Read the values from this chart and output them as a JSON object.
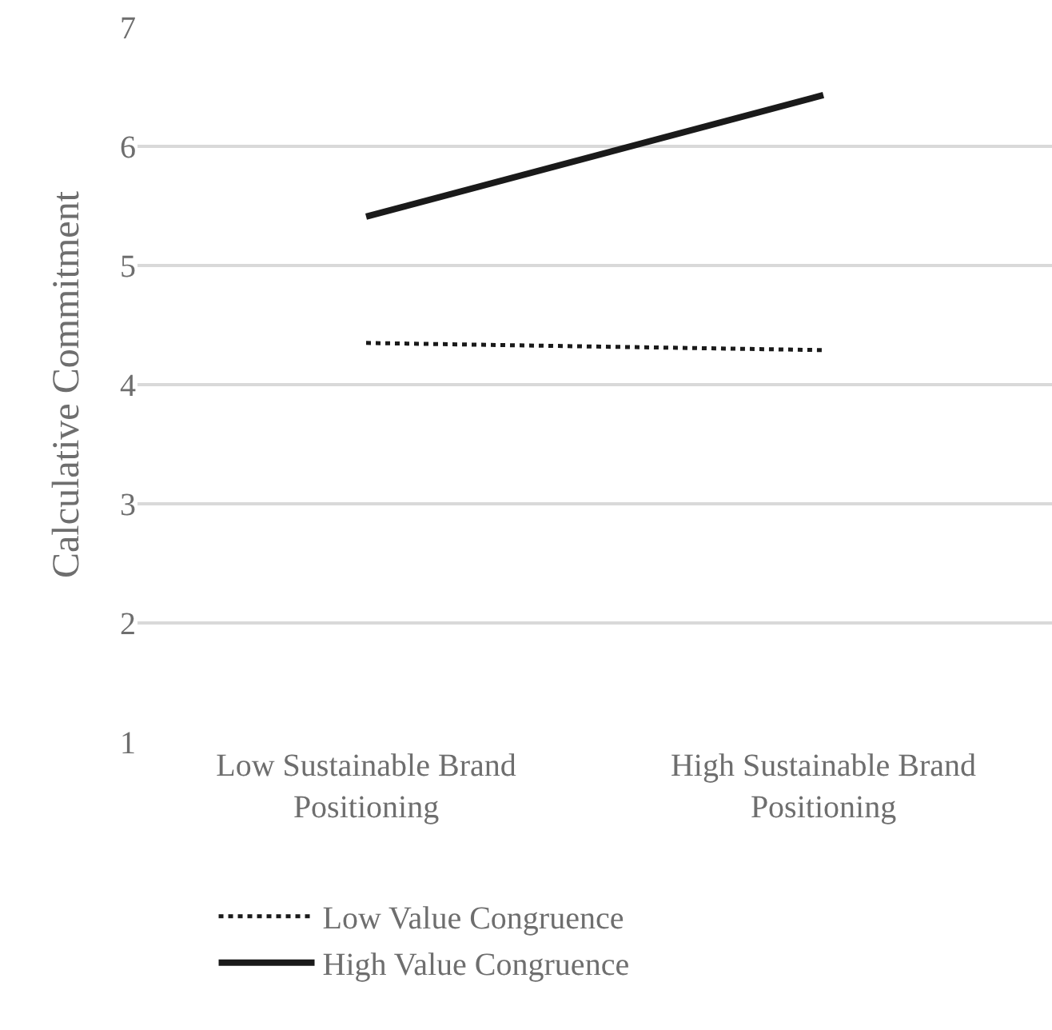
{
  "chart_data": {
    "type": "line",
    "ylabel": "Calculative Commitment",
    "categories": [
      "Low Sustainable Brand Positioning",
      "High Sustainable Brand Positioning"
    ],
    "series": [
      {
        "name": "Low Value Congruence",
        "color": "#1a1a1a",
        "values": [
          4.35,
          4.29
        ],
        "line_style": "dotted"
      },
      {
        "name": "High Value Congruence",
        "color": "#1a1a1a",
        "values": [
          5.41,
          6.43
        ],
        "line_style": "solid"
      }
    ],
    "ylim": [
      1,
      7
    ],
    "yticks": [
      1,
      2,
      3,
      4,
      5,
      6,
      7
    ],
    "grid": "y",
    "legend": "bottom",
    "marker": "none"
  }
}
